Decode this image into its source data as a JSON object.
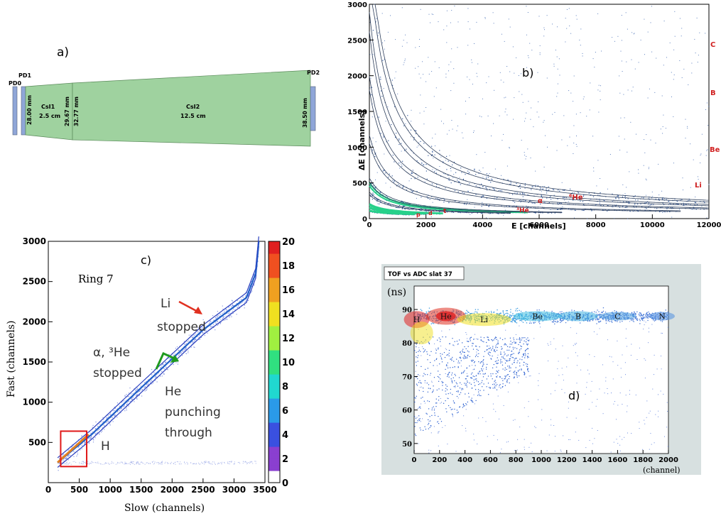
{
  "panel_a": {
    "letter": "a)",
    "detectors": {
      "pd0": "PD0",
      "pd1": "PD1",
      "pd2": "PD2"
    },
    "csi1": {
      "name": "CsI1",
      "length": "2.5 cm"
    },
    "csi2": {
      "name": "CsI2",
      "length": "12.5 cm"
    },
    "dims": [
      "28.00 mm",
      "29.67 mm",
      "32.77 mm",
      "38.50 mm"
    ],
    "colors": {
      "crystal": "#9fd29f",
      "photodiode": "#8fa6d8"
    }
  },
  "chart_data": [
    {
      "id": "b",
      "type": "scatter",
      "letter": "b)",
      "title": "",
      "xlabel": "E [channels]",
      "ylabel": "ΔE [channels]",
      "xlim": [
        0,
        12000
      ],
      "ylim": [
        0,
        3000
      ],
      "xticks": [
        "0",
        "2000",
        "4000",
        "6000",
        "8000",
        "10000",
        "12000"
      ],
      "yticks": [
        "0",
        "500",
        "1000",
        "1500",
        "2000",
        "2500",
        "3000"
      ],
      "bands": [
        {
          "name": "C",
          "a": 2600000.0,
          "xmax": 12000
        },
        {
          "name": "B",
          "a": 1900000.0,
          "xmax": 12000
        },
        {
          "name": "Be",
          "a": 1300000.0,
          "xmax": 12000
        },
        {
          "name": "Li",
          "a": 750000.0,
          "xmax": 11000
        },
        {
          "name": "α",
          "a": 310000.0,
          "xmax": 5600
        },
        {
          "name": "⁶He",
          "a": 350000.0,
          "xmax": 6800
        },
        {
          "name": "³He",
          "a": 220000.0,
          "xmax": 5000
        },
        {
          "name": "t",
          "a": 110000.0,
          "xmax": 2600
        },
        {
          "name": "d",
          "a": 80000.0,
          "xmax": 2000
        },
        {
          "name": "p",
          "a": 50000.0,
          "xmax": 1600
        }
      ],
      "labels": [
        "C",
        "B",
        "Be",
        "Li",
        "α",
        "⁶He",
        "³He",
        "t",
        "d",
        "p"
      ],
      "colors": {
        "label": "#d02020",
        "points": "#3a5fa0",
        "band_hot": "#27d18a"
      }
    },
    {
      "id": "c",
      "type": "scatter",
      "letter": "c)",
      "title": "Ring 7",
      "xlabel": "Slow (channels)",
      "ylabel": "Fast (channels)",
      "xlim": [
        0,
        3500
      ],
      "ylim": [
        0,
        3000
      ],
      "xticks": [
        "0",
        "500",
        "1000",
        "1500",
        "2000",
        "2500",
        "3000",
        "3500"
      ],
      "yticks": [
        "500",
        "1000",
        "1500",
        "2000",
        "2500",
        "3000"
      ],
      "colorbar": {
        "min": 0,
        "max": 20,
        "ticks": [
          "0",
          "2",
          "4",
          "6",
          "8",
          "10",
          "12",
          "14",
          "16",
          "18",
          "20"
        ]
      },
      "annotations": [
        {
          "text1": "Li",
          "text2": "stopped"
        },
        {
          "text1": "α, ³He",
          "text2": "stopped"
        },
        {
          "text1": "He",
          "text2": "punching",
          "text3": "through"
        },
        {
          "text1": "H"
        }
      ],
      "band": [
        [
          150,
          250
        ],
        [
          700,
          600
        ],
        [
          1500,
          1180
        ],
        [
          2500,
          1900
        ],
        [
          3200,
          2300
        ],
        [
          3350,
          2600
        ],
        [
          3400,
          3000
        ]
      ],
      "box": {
        "x": [
          200,
          620
        ],
        "y": [
          200,
          640
        ]
      },
      "colors": {
        "band": "#2a3fbf",
        "box": "#e01818",
        "arrow_li": "#e03020",
        "arrow_alpha": "#1f9a1f"
      }
    },
    {
      "id": "d",
      "type": "scatter",
      "letter": "d)",
      "title": "TOF vs ADC slat 37",
      "xlabel": "(channel)",
      "ylabel": "(ns)",
      "xlim": [
        0,
        2000
      ],
      "ylim": [
        47,
        97
      ],
      "xticks": [
        "0",
        "200",
        "400",
        "600",
        "800",
        "1000",
        "1200",
        "1400",
        "1600",
        "1800",
        "2000"
      ],
      "yticks": [
        "50",
        "60",
        "70",
        "80",
        "90"
      ],
      "elements": [
        {
          "name": "H",
          "x": 20,
          "y": 87
        },
        {
          "name": "He",
          "x": 250,
          "y": 88
        },
        {
          "name": "Li",
          "x": 550,
          "y": 87
        },
        {
          "name": "Be",
          "x": 970,
          "y": 88
        },
        {
          "name": "B",
          "x": 1290,
          "y": 88
        },
        {
          "name": "C",
          "x": 1600,
          "y": 88
        },
        {
          "name": "N",
          "x": 1950,
          "y": 88
        }
      ],
      "colors": {
        "background": "#d7e0e0",
        "hot": "#e02020",
        "mid": "#f0e020",
        "low": "#2a5fd0"
      }
    }
  ]
}
